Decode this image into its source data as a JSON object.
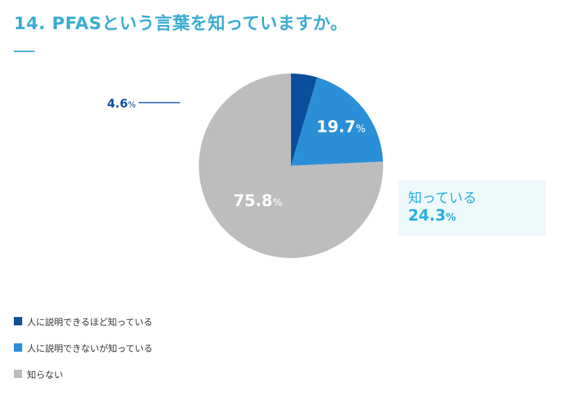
{
  "title": "14. PFASという言葉を知っていますか。",
  "chart_data": {
    "type": "pie",
    "title": "14. PFASという言葉を知っていますか。",
    "unit": "%",
    "slices": [
      {
        "label": "人に説明できるほど知っている",
        "value": 4.6,
        "value_text": "4.6",
        "color": "#0b4f9c"
      },
      {
        "label": "人に説明できないが知っている",
        "value": 19.7,
        "value_text": "19.7",
        "color": "#2b8fd8"
      },
      {
        "label": "知らない",
        "value": 75.8,
        "value_text": "75.8",
        "color": "#bdbdbd"
      }
    ],
    "start_angle": "12 o'clock",
    "direction": "clockwise",
    "legend_position": "bottom-left",
    "annotation": {
      "label": "知っている",
      "value": "24.3",
      "unit": "%"
    }
  }
}
